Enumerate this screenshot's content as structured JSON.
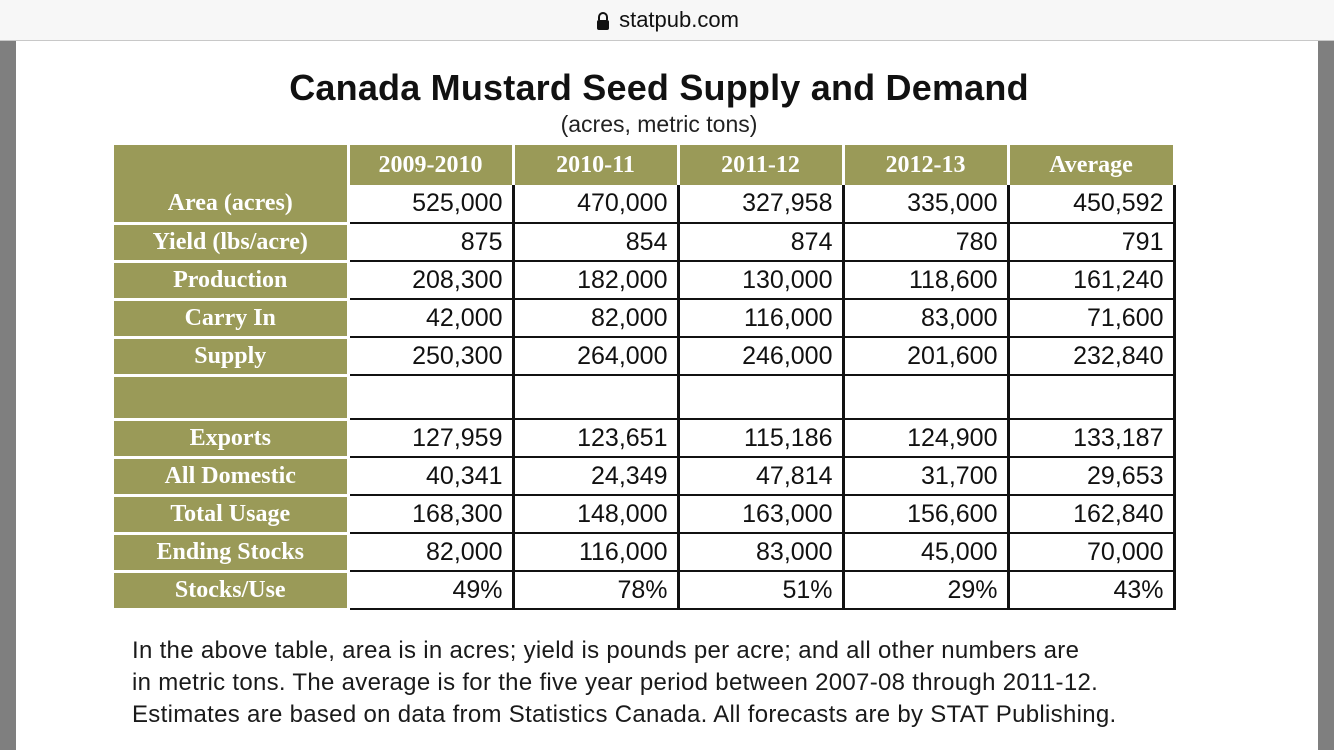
{
  "browser": {
    "url": "statpub.com",
    "lock_icon": "lock-icon"
  },
  "title": "Canada Mustard Seed Supply and Demand",
  "subtitle": "(acres, metric tons)",
  "table": {
    "columns": [
      "2009-2010",
      "2010-11",
      "2011-12",
      "2012-13",
      "Average"
    ],
    "rows": [
      {
        "label": "Area (acres)",
        "values": [
          "525,000",
          "470,000",
          "327,958",
          "335,000",
          "450,592"
        ]
      },
      {
        "label": "Yield (lbs/acre)",
        "values": [
          "875",
          "854",
          "874",
          "780",
          "791"
        ]
      },
      {
        "label": "Production",
        "values": [
          "208,300",
          "182,000",
          "130,000",
          "118,600",
          "161,240"
        ]
      },
      {
        "label": "Carry In",
        "values": [
          "42,000",
          "82,000",
          "116,000",
          "83,000",
          "71,600"
        ]
      },
      {
        "label": "Supply",
        "values": [
          "250,300",
          "264,000",
          "246,000",
          "201,600",
          "232,840"
        ]
      },
      {
        "label": "",
        "values": [
          "",
          "",
          "",
          "",
          ""
        ]
      },
      {
        "label": "Exports",
        "values": [
          "127,959",
          "123,651",
          "115,186",
          "124,900",
          "133,187"
        ]
      },
      {
        "label": "All Domestic",
        "values": [
          "40,341",
          "24,349",
          "47,814",
          "31,700",
          "29,653"
        ]
      },
      {
        "label": "Total Usage",
        "values": [
          "168,300",
          "148,000",
          "163,000",
          "156,600",
          "162,840"
        ]
      },
      {
        "label": "Ending Stocks",
        "values": [
          "82,000",
          "116,000",
          "83,000",
          "45,000",
          "70,000"
        ]
      },
      {
        "label": "Stocks/Use",
        "values": [
          "49%",
          "78%",
          "51%",
          "29%",
          "43%"
        ]
      }
    ]
  },
  "note_lines": [
    "In the above table, area is in acres; yield is pounds per acre; and all other numbers are",
    "in metric tons. The average is for the five year period between 2007-08 through 2011-12.",
    "Estimates are based on data from Statistics Canada. All forecasts are by STAT Publishing."
  ],
  "colors": {
    "header_olive": "#9a9a58",
    "page_bg": "#ffffff",
    "frame_gray": "#7f7f7f"
  }
}
